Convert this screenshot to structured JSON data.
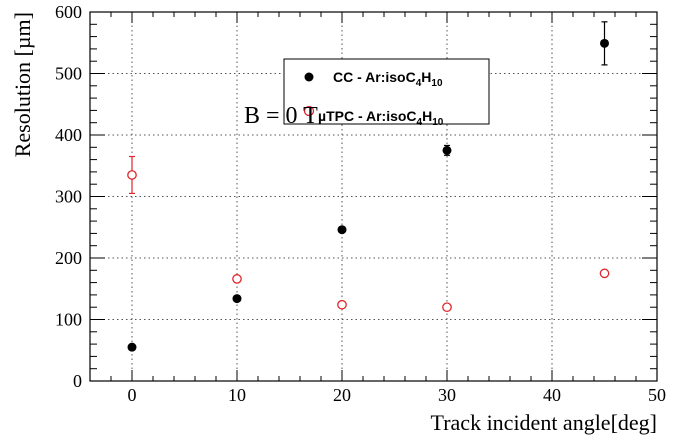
{
  "chart_data": {
    "type": "scatter",
    "xlabel": "Track incident angle[deg]",
    "ylabel": "Resolution [µm]",
    "xlim": [
      -4,
      50
    ],
    "ylim": [
      0,
      600
    ],
    "x_ticks": [
      0,
      10,
      20,
      30,
      40,
      50
    ],
    "x_tick_labels": [
      "0",
      "10",
      "20",
      "30",
      "40",
      "50"
    ],
    "y_ticks": [
      0,
      100,
      200,
      300,
      400,
      500,
      600
    ],
    "y_tick_labels": [
      "0",
      "100",
      "200",
      "300",
      "400",
      "500",
      "600"
    ],
    "grid": true,
    "legend_position": "top-center",
    "annotation": "B = 0 T",
    "series": [
      {
        "name": "CC - Ar:isoC4H10",
        "marker": "filled-circle",
        "color": "#000000",
        "points": [
          {
            "x": 0,
            "y": 55,
            "err": 3
          },
          {
            "x": 10,
            "y": 134,
            "err": 4
          },
          {
            "x": 20,
            "y": 246,
            "err": 4
          },
          {
            "x": 30,
            "y": 375,
            "err": 8
          },
          {
            "x": 45,
            "y": 549,
            "err": 35
          }
        ]
      },
      {
        "name": "µTPC - Ar:isoC4H10",
        "marker": "open-circle",
        "color": "#e0262b",
        "points": [
          {
            "x": 0,
            "y": 335,
            "err": 30
          },
          {
            "x": 10,
            "y": 166,
            "err": 3
          },
          {
            "x": 20,
            "y": 124,
            "err": 3
          },
          {
            "x": 30,
            "y": 120,
            "err": 3
          },
          {
            "x": 45,
            "y": 175,
            "err": 3
          }
        ]
      }
    ]
  },
  "legend": {
    "cc_text": "CC - Ar:isoC",
    "cc_sub1": "4",
    "cc_mid": "H",
    "cc_sub2": "10",
    "utpc_text": "µTPC - Ar:isoC",
    "utpc_sub1": "4",
    "utpc_mid": "H",
    "utpc_sub2": "10"
  }
}
